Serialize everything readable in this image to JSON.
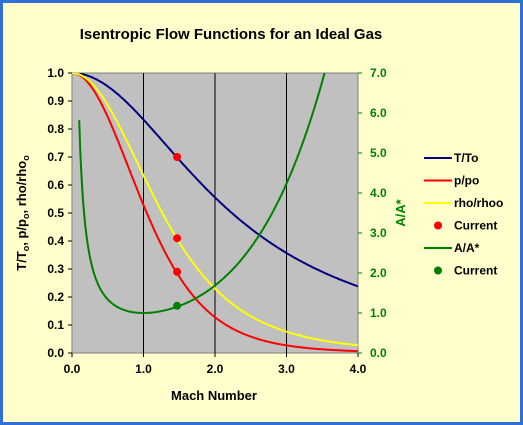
{
  "chart_data": {
    "type": "line",
    "title": "Isentropic Flow Functions for an Ideal Gas",
    "xlabel": "Mach Number",
    "ylabel_left": "T/To, p/po, rho/rhoo",
    "ylabel_right": "A/A*",
    "xlim": [
      0.0,
      4.0
    ],
    "ylim_left": [
      0.0,
      1.0
    ],
    "ylim_right": [
      0.0,
      7.0
    ],
    "x_ticks": [
      "0.0",
      "1.0",
      "2.0",
      "3.0",
      "4.0"
    ],
    "y_left_ticks": [
      "0.0",
      "0.1",
      "0.2",
      "0.3",
      "0.4",
      "0.5",
      "0.6",
      "0.7",
      "0.8",
      "0.9",
      "1.0"
    ],
    "y_right_ticks": [
      "0.0",
      "1.0",
      "2.0",
      "3.0",
      "4.0",
      "5.0",
      "6.0",
      "7.0"
    ],
    "grid": "vertical",
    "plot_background": "#c0c0c0",
    "gamma": 1.4,
    "series": [
      {
        "name": "T/To",
        "axis": "left",
        "color": "#000080",
        "x": [
          0.0,
          0.5,
          1.0,
          1.5,
          2.0,
          2.5,
          3.0,
          3.5,
          4.0
        ],
        "y": [
          1.0,
          0.952,
          0.833,
          0.69,
          0.556,
          0.444,
          0.357,
          0.29,
          0.238
        ]
      },
      {
        "name": "p/po",
        "axis": "left",
        "color": "#ff0000",
        "x": [
          0.0,
          0.5,
          1.0,
          1.5,
          2.0,
          2.5,
          3.0,
          3.5,
          4.0
        ],
        "y": [
          1.0,
          0.843,
          0.528,
          0.272,
          0.128,
          0.059,
          0.027,
          0.013,
          0.007
        ]
      },
      {
        "name": "rho/rhoo",
        "axis": "left",
        "color": "#ffff00",
        "x": [
          0.0,
          0.5,
          1.0,
          1.5,
          2.0,
          2.5,
          3.0,
          3.5,
          4.0
        ],
        "y": [
          1.0,
          0.885,
          0.634,
          0.395,
          0.23,
          0.132,
          0.076,
          0.045,
          0.028
        ]
      },
      {
        "name": "Current",
        "type": "scatter",
        "axis": "left",
        "color": "#ff0000",
        "x": [
          1.47,
          1.47,
          1.47
        ],
        "y": [
          0.7,
          0.41,
          0.29
        ]
      },
      {
        "name": "A/A*",
        "axis": "right",
        "color": "#008000",
        "x": [
          0.1,
          0.3,
          0.5,
          1.0,
          1.5,
          2.0,
          2.5,
          3.0,
          3.5
        ],
        "y": [
          5.82,
          2.04,
          1.34,
          1.0,
          1.18,
          1.69,
          2.64,
          4.23,
          6.79
        ]
      },
      {
        "name": "Current",
        "type": "scatter",
        "axis": "right",
        "color": "#008000",
        "x": [
          1.47
        ],
        "y": [
          1.18
        ]
      }
    ],
    "legend_position": "right"
  }
}
